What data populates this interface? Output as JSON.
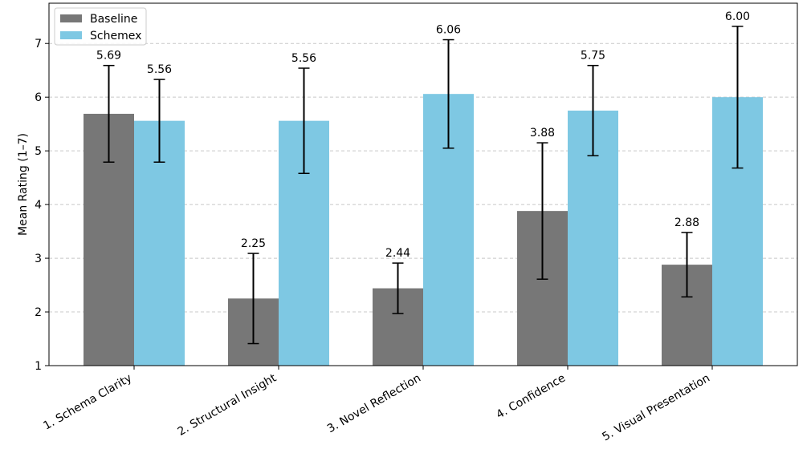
{
  "chart_data": {
    "type": "bar",
    "title": "",
    "xlabel": "",
    "ylabel": "Mean Rating (1–7)",
    "ylim": [
      1,
      7.75
    ],
    "yticks": [
      1,
      2,
      3,
      4,
      5,
      6,
      7
    ],
    "grid": "horizontal dashed",
    "legend_position": "top-left",
    "categories": [
      "1. Schema Clarity",
      "2. Structural Insight",
      "3. Novel Reflection",
      "4. Confidence",
      "5. Visual Presentation"
    ],
    "series": [
      {
        "name": "Baseline",
        "color": "#777777",
        "values": [
          5.69,
          2.25,
          2.44,
          3.88,
          2.88
        ],
        "labels": [
          "5.69",
          "2.25",
          "2.44",
          "3.88",
          "2.88"
        ],
        "error": [
          0.9,
          0.84,
          0.47,
          1.27,
          0.6
        ]
      },
      {
        "name": "Schemex",
        "color": "#7ec8e3",
        "values": [
          5.56,
          5.56,
          6.06,
          5.75,
          6.0
        ],
        "labels": [
          "5.56",
          "5.56",
          "6.06",
          "5.75",
          "6.00"
        ],
        "error": [
          0.77,
          0.98,
          1.01,
          0.84,
          1.32
        ]
      }
    ]
  }
}
